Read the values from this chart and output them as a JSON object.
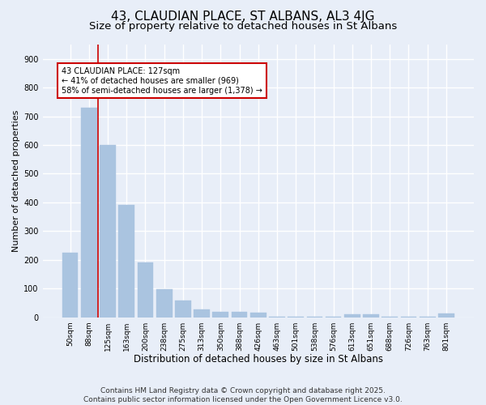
{
  "title": "43, CLAUDIAN PLACE, ST ALBANS, AL3 4JG",
  "subtitle": "Size of property relative to detached houses in St Albans",
  "xlabel": "Distribution of detached houses by size in St Albans",
  "ylabel": "Number of detached properties",
  "categories": [
    "50sqm",
    "88sqm",
    "125sqm",
    "163sqm",
    "200sqm",
    "238sqm",
    "275sqm",
    "313sqm",
    "350sqm",
    "388sqm",
    "426sqm",
    "463sqm",
    "501sqm",
    "538sqm",
    "576sqm",
    "613sqm",
    "651sqm",
    "688sqm",
    "726sqm",
    "763sqm",
    "801sqm"
  ],
  "values": [
    225,
    730,
    600,
    390,
    190,
    98,
    58,
    28,
    20,
    18,
    15,
    2,
    2,
    2,
    2,
    10,
    10,
    2,
    2,
    2,
    12
  ],
  "bar_color": "#aac4e0",
  "bar_edgecolor": "#aac4e0",
  "vline_x": 1.5,
  "vline_color": "#cc0000",
  "annotation_text": "43 CLAUDIAN PLACE: 127sqm\n← 41% of detached houses are smaller (969)\n58% of semi-detached houses are larger (1,378) →",
  "annotation_box_color": "#ffffff",
  "annotation_box_edgecolor": "#cc0000",
  "ylim": [
    0,
    950
  ],
  "yticks": [
    0,
    100,
    200,
    300,
    400,
    500,
    600,
    700,
    800,
    900
  ],
  "background_color": "#e8eef8",
  "grid_color": "#ffffff",
  "footer": "Contains HM Land Registry data © Crown copyright and database right 2025.\nContains public sector information licensed under the Open Government Licence v3.0.",
  "title_fontsize": 11,
  "subtitle_fontsize": 9.5,
  "xlabel_fontsize": 8.5,
  "ylabel_fontsize": 8,
  "footer_fontsize": 6.5,
  "annotation_fontsize": 7,
  "tick_fontsize": 6.5
}
